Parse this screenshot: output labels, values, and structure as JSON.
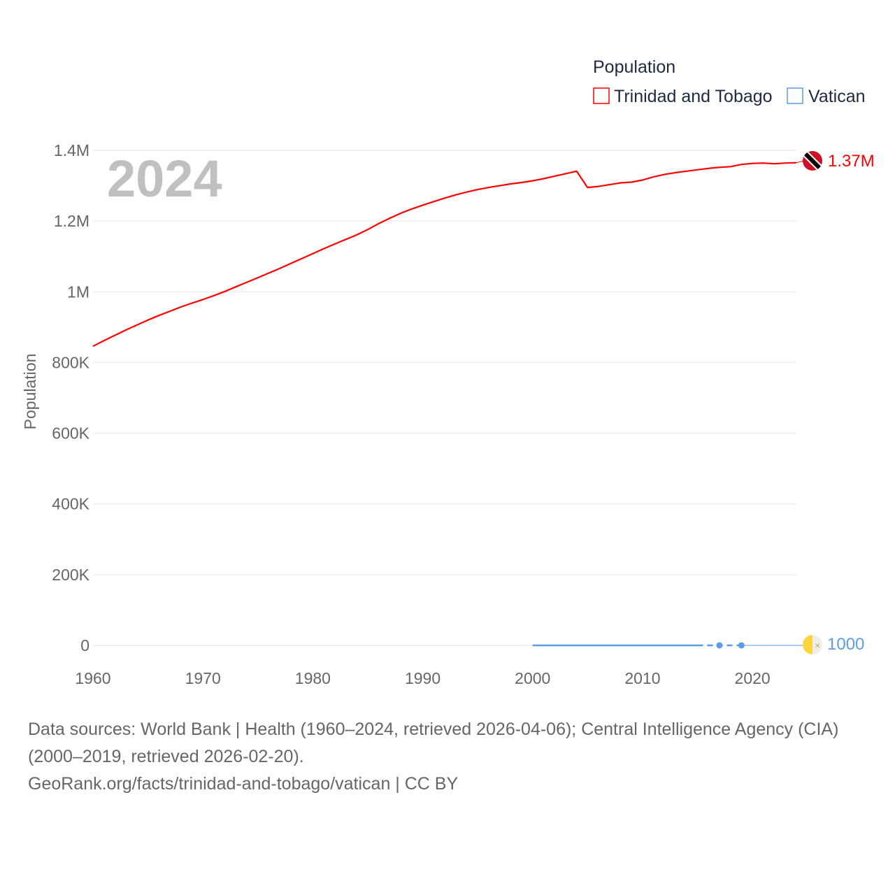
{
  "chart_data": {
    "type": "line",
    "title": "",
    "watermark_year": "2024",
    "ylabel": "Population",
    "xlabel": "",
    "xlim": [
      1960,
      2024
    ],
    "ylim": [
      0,
      1400000
    ],
    "grid": true,
    "x_ticks": [
      "1960",
      "1970",
      "1980",
      "1990",
      "2000",
      "2010",
      "2020"
    ],
    "y_ticks": [
      {
        "v": 0,
        "label": "0"
      },
      {
        "v": 200000,
        "label": "200K"
      },
      {
        "v": 400000,
        "label": "400K"
      },
      {
        "v": 600000,
        "label": "600K"
      },
      {
        "v": 800000,
        "label": "800K"
      },
      {
        "v": 1000000,
        "label": "1M"
      },
      {
        "v": 1200000,
        "label": "1.2M"
      },
      {
        "v": 1400000,
        "label": "1.4M"
      }
    ],
    "legend": {
      "title": "Population",
      "placement": "top-right",
      "entries": [
        "Trinidad and Tobago",
        "Vatican"
      ]
    },
    "series": [
      {
        "name": "Trinidad and Tobago",
        "color": "#ff0000",
        "end_label": "1.37M",
        "x_start": 1960,
        "values": [
          846000,
          862000,
          877000,
          892000,
          906000,
          920000,
          933000,
          945000,
          957000,
          968000,
          978000,
          989000,
          1001000,
          1014000,
          1027000,
          1040000,
          1053000,
          1066000,
          1080000,
          1094000,
          1108000,
          1122000,
          1135000,
          1148000,
          1161000,
          1176000,
          1193000,
          1208000,
          1222000,
          1234000,
          1245000,
          1255000,
          1265000,
          1274000,
          1282000,
          1289000,
          1295000,
          1300000,
          1305000,
          1309000,
          1314000,
          1320000,
          1327000,
          1334000,
          1341000,
          1295000,
          1298000,
          1303000,
          1308000,
          1310000,
          1316000,
          1325000,
          1332000,
          1337000,
          1341000,
          1345000,
          1349000,
          1352000,
          1354000,
          1360000,
          1363000,
          1364000,
          1362000,
          1364000,
          1365000
        ]
      },
      {
        "name": "Vatican",
        "color": "#5b9ee6",
        "end_label": "1000",
        "solid_range": [
          2000,
          2015
        ],
        "points": [
          {
            "x": 2017,
            "y": 1000
          },
          {
            "x": 2019,
            "y": 1000
          }
        ],
        "value": 1000,
        "end_x": 2024
      }
    ]
  },
  "footer": {
    "line1": "Data sources: World Bank | Health (1960–2024, retrieved 2026-04-06); Central Intelligence Agency (CIA) (2000–2019, retrieved 2026-02-20).",
    "line2": "GeoRank.org/facts/trinidad-and-tobago/vatican | CC BY"
  }
}
